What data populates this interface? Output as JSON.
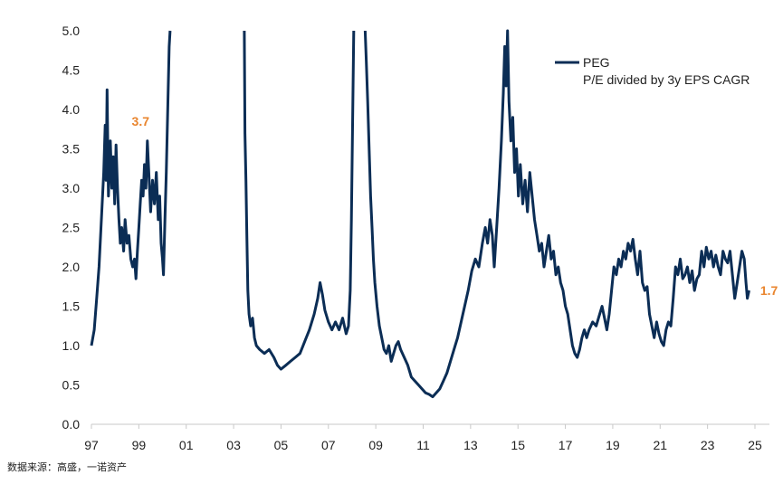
{
  "chart_data": {
    "type": "line",
    "ylim": [
      0,
      5
    ],
    "xlim": [
      1997.0,
      2025.75
    ],
    "y_ticks": [
      "0.0",
      "0.5",
      "1.0",
      "1.5",
      "2.0",
      "2.5",
      "3.0",
      "3.5",
      "4.0",
      "4.5",
      "5.0"
    ],
    "y_tick_values": [
      0,
      0.5,
      1,
      1.5,
      2,
      2.5,
      3,
      3.5,
      4,
      4.5,
      5
    ],
    "x_ticks": [
      "97",
      "99",
      "01",
      "03",
      "05",
      "07",
      "09",
      "11",
      "13",
      "15",
      "17",
      "19",
      "21",
      "23",
      "25"
    ],
    "x_tick_values": [
      1997,
      1999,
      2001,
      2003,
      2005,
      2007,
      2009,
      2011,
      2013,
      2015,
      2017,
      2019,
      2021,
      2023,
      2025
    ],
    "grid": false,
    "legend_position": "top-right",
    "colors": {
      "line": "#0b2d55",
      "annotation": "#e9852e",
      "axis": "#c8c8c8"
    },
    "series": [
      {
        "name": "PEG\nP/E divided by 3y EPS CAGR",
        "legend_line1": "PEG",
        "legend_line2": "P/E divided by 3y EPS CAGR",
        "points": [
          [
            1997.0,
            1.0
          ],
          [
            1997.12,
            1.2
          ],
          [
            1997.22,
            1.6
          ],
          [
            1997.32,
            2.0
          ],
          [
            1997.42,
            2.6
          ],
          [
            1997.52,
            3.2
          ],
          [
            1997.58,
            3.8
          ],
          [
            1997.62,
            3.1
          ],
          [
            1997.66,
            4.25
          ],
          [
            1997.72,
            2.9
          ],
          [
            1997.8,
            3.6
          ],
          [
            1997.86,
            3.0
          ],
          [
            1997.92,
            3.4
          ],
          [
            1997.98,
            2.8
          ],
          [
            1998.04,
            3.55
          ],
          [
            1998.1,
            3.0
          ],
          [
            1998.16,
            2.6
          ],
          [
            1998.22,
            2.3
          ],
          [
            1998.28,
            2.5
          ],
          [
            1998.36,
            2.2
          ],
          [
            1998.42,
            2.6
          ],
          [
            1998.5,
            2.3
          ],
          [
            1998.58,
            2.4
          ],
          [
            1998.66,
            2.1
          ],
          [
            1998.74,
            2.0
          ],
          [
            1998.82,
            2.1
          ],
          [
            1998.88,
            1.85
          ],
          [
            1998.94,
            2.2
          ],
          [
            1999.0,
            2.5
          ],
          [
            1999.06,
            2.8
          ],
          [
            1999.12,
            3.1
          ],
          [
            1999.18,
            2.9
          ],
          [
            1999.24,
            3.3
          ],
          [
            1999.3,
            3.0
          ],
          [
            1999.36,
            3.6
          ],
          [
            1999.42,
            3.2
          ],
          [
            1999.5,
            2.7
          ],
          [
            1999.58,
            3.1
          ],
          [
            1999.66,
            2.8
          ],
          [
            1999.74,
            3.2
          ],
          [
            1999.82,
            2.6
          ],
          [
            1999.88,
            2.9
          ],
          [
            1999.94,
            2.3
          ],
          [
            2000.0,
            2.1
          ],
          [
            2000.04,
            1.9
          ],
          [
            2000.1,
            2.6
          ],
          [
            2000.16,
            3.2
          ],
          [
            2000.22,
            4.0
          ],
          [
            2000.28,
            4.8
          ],
          [
            2000.32,
            5.0
          ]
        ],
        "points_2": [
          [
            2003.45,
            5.0
          ],
          [
            2003.48,
            3.7
          ],
          [
            2003.52,
            3.1
          ],
          [
            2003.56,
            2.4
          ],
          [
            2003.6,
            1.7
          ],
          [
            2003.65,
            1.4
          ],
          [
            2003.72,
            1.25
          ],
          [
            2003.8,
            1.35
          ],
          [
            2003.88,
            1.1
          ],
          [
            2003.96,
            1.0
          ],
          [
            2004.1,
            0.95
          ],
          [
            2004.3,
            0.9
          ],
          [
            2004.5,
            0.95
          ],
          [
            2004.7,
            0.85
          ],
          [
            2004.85,
            0.75
          ],
          [
            2005.0,
            0.7
          ],
          [
            2005.2,
            0.75
          ],
          [
            2005.4,
            0.8
          ],
          [
            2005.6,
            0.85
          ],
          [
            2005.8,
            0.9
          ],
          [
            2006.0,
            1.05
          ],
          [
            2006.2,
            1.2
          ],
          [
            2006.4,
            1.4
          ],
          [
            2006.55,
            1.6
          ],
          [
            2006.65,
            1.8
          ],
          [
            2006.75,
            1.65
          ],
          [
            2006.85,
            1.45
          ],
          [
            2007.0,
            1.3
          ],
          [
            2007.15,
            1.2
          ],
          [
            2007.3,
            1.3
          ],
          [
            2007.45,
            1.2
          ],
          [
            2007.6,
            1.35
          ],
          [
            2007.75,
            1.15
          ],
          [
            2007.85,
            1.25
          ],
          [
            2007.92,
            1.7
          ],
          [
            2007.97,
            2.6
          ],
          [
            2008.02,
            3.8
          ],
          [
            2008.07,
            5.0
          ]
        ],
        "points_3": [
          [
            2008.55,
            5.0
          ],
          [
            2008.6,
            4.6
          ],
          [
            2008.66,
            4.1
          ],
          [
            2008.72,
            3.5
          ],
          [
            2008.78,
            2.9
          ],
          [
            2008.84,
            2.5
          ],
          [
            2008.9,
            2.1
          ],
          [
            2008.96,
            1.8
          ],
          [
            2009.05,
            1.5
          ],
          [
            2009.15,
            1.25
          ],
          [
            2009.25,
            1.1
          ],
          [
            2009.35,
            0.95
          ],
          [
            2009.45,
            0.9
          ],
          [
            2009.55,
            1.0
          ],
          [
            2009.65,
            0.8
          ],
          [
            2009.75,
            0.9
          ],
          [
            2009.85,
            1.0
          ],
          [
            2009.95,
            1.05
          ],
          [
            2010.05,
            0.95
          ],
          [
            2010.2,
            0.85
          ],
          [
            2010.35,
            0.75
          ],
          [
            2010.5,
            0.6
          ],
          [
            2010.65,
            0.55
          ],
          [
            2010.8,
            0.5
          ],
          [
            2010.95,
            0.45
          ],
          [
            2011.1,
            0.4
          ],
          [
            2011.25,
            0.38
          ],
          [
            2011.4,
            0.35
          ],
          [
            2011.55,
            0.4
          ],
          [
            2011.7,
            0.45
          ],
          [
            2011.85,
            0.55
          ],
          [
            2012.0,
            0.65
          ],
          [
            2012.15,
            0.8
          ],
          [
            2012.3,
            0.95
          ],
          [
            2012.45,
            1.1
          ],
          [
            2012.6,
            1.3
          ],
          [
            2012.75,
            1.5
          ],
          [
            2012.9,
            1.7
          ],
          [
            2013.05,
            1.95
          ],
          [
            2013.2,
            2.1
          ],
          [
            2013.35,
            2.0
          ],
          [
            2013.5,
            2.3
          ],
          [
            2013.62,
            2.5
          ],
          [
            2013.72,
            2.3
          ],
          [
            2013.82,
            2.6
          ],
          [
            2013.92,
            2.4
          ],
          [
            2014.0,
            2.0
          ],
          [
            2014.1,
            2.5
          ],
          [
            2014.2,
            3.0
          ],
          [
            2014.3,
            3.6
          ],
          [
            2014.38,
            4.2
          ],
          [
            2014.44,
            4.8
          ],
          [
            2014.5,
            4.3
          ],
          [
            2014.56,
            5.0
          ],
          [
            2014.62,
            4.1
          ],
          [
            2014.7,
            3.6
          ],
          [
            2014.78,
            3.9
          ],
          [
            2014.86,
            3.2
          ],
          [
            2014.94,
            3.5
          ],
          [
            2015.02,
            2.9
          ],
          [
            2015.1,
            3.3
          ],
          [
            2015.2,
            2.8
          ],
          [
            2015.3,
            3.1
          ],
          [
            2015.4,
            2.7
          ],
          [
            2015.5,
            3.2
          ],
          [
            2015.6,
            2.9
          ],
          [
            2015.7,
            2.6
          ],
          [
            2015.8,
            2.4
          ],
          [
            2015.9,
            2.2
          ],
          [
            2016.0,
            2.3
          ],
          [
            2016.1,
            2.0
          ],
          [
            2016.2,
            2.2
          ],
          [
            2016.3,
            2.4
          ],
          [
            2016.4,
            2.1
          ],
          [
            2016.5,
            2.2
          ],
          [
            2016.6,
            1.9
          ],
          [
            2016.7,
            2.0
          ],
          [
            2016.8,
            1.8
          ],
          [
            2016.9,
            1.7
          ],
          [
            2017.0,
            1.5
          ],
          [
            2017.1,
            1.4
          ],
          [
            2017.2,
            1.2
          ],
          [
            2017.3,
            1.0
          ],
          [
            2017.4,
            0.9
          ],
          [
            2017.5,
            0.85
          ],
          [
            2017.6,
            0.95
          ],
          [
            2017.7,
            1.1
          ],
          [
            2017.8,
            1.2
          ],
          [
            2017.9,
            1.1
          ],
          [
            2018.0,
            1.2
          ],
          [
            2018.15,
            1.3
          ],
          [
            2018.3,
            1.25
          ],
          [
            2018.45,
            1.4
          ],
          [
            2018.55,
            1.5
          ],
          [
            2018.65,
            1.35
          ],
          [
            2018.75,
            1.2
          ],
          [
            2018.85,
            1.4
          ],
          [
            2018.95,
            1.7
          ],
          [
            2019.05,
            2.0
          ],
          [
            2019.15,
            1.9
          ],
          [
            2019.25,
            2.1
          ],
          [
            2019.35,
            2.0
          ],
          [
            2019.45,
            2.2
          ],
          [
            2019.55,
            2.1
          ],
          [
            2019.65,
            2.3
          ],
          [
            2019.75,
            2.2
          ],
          [
            2019.85,
            2.35
          ],
          [
            2019.95,
            2.1
          ],
          [
            2020.05,
            1.9
          ],
          [
            2020.15,
            2.2
          ],
          [
            2020.25,
            1.8
          ],
          [
            2020.35,
            1.7
          ],
          [
            2020.45,
            1.75
          ],
          [
            2020.55,
            1.4
          ],
          [
            2020.65,
            1.25
          ],
          [
            2020.75,
            1.1
          ],
          [
            2020.85,
            1.3
          ],
          [
            2020.95,
            1.15
          ],
          [
            2021.05,
            1.05
          ],
          [
            2021.15,
            1.0
          ],
          [
            2021.25,
            1.2
          ],
          [
            2021.35,
            1.3
          ],
          [
            2021.45,
            1.25
          ],
          [
            2021.55,
            1.6
          ],
          [
            2021.65,
            2.0
          ],
          [
            2021.75,
            1.9
          ],
          [
            2021.85,
            2.1
          ],
          [
            2021.95,
            1.85
          ],
          [
            2022.05,
            1.9
          ],
          [
            2022.15,
            2.0
          ],
          [
            2022.25,
            1.8
          ],
          [
            2022.35,
            1.95
          ],
          [
            2022.45,
            1.7
          ],
          [
            2022.55,
            1.85
          ],
          [
            2022.65,
            1.9
          ],
          [
            2022.75,
            2.2
          ],
          [
            2022.85,
            2.0
          ],
          [
            2022.95,
            2.25
          ],
          [
            2023.05,
            2.1
          ],
          [
            2023.15,
            2.2
          ],
          [
            2023.25,
            2.0
          ],
          [
            2023.35,
            2.15
          ],
          [
            2023.45,
            2.0
          ],
          [
            2023.55,
            1.9
          ],
          [
            2023.65,
            2.2
          ],
          [
            2023.75,
            2.1
          ],
          [
            2023.85,
            2.05
          ],
          [
            2023.95,
            2.2
          ],
          [
            2024.05,
            1.9
          ],
          [
            2024.15,
            1.6
          ],
          [
            2024.25,
            1.8
          ],
          [
            2024.35,
            2.0
          ],
          [
            2024.45,
            2.2
          ],
          [
            2024.55,
            2.1
          ],
          [
            2024.62,
            1.8
          ],
          [
            2024.68,
            1.6
          ],
          [
            2024.75,
            1.7
          ]
        ]
      }
    ],
    "annotations": [
      {
        "text": "3.7",
        "x": 1999.15,
        "y": 3.7
      },
      {
        "text": "1.7",
        "x": 2025.3,
        "y": 1.7
      }
    ]
  },
  "source": "数据来源：高盛，一诺资产"
}
